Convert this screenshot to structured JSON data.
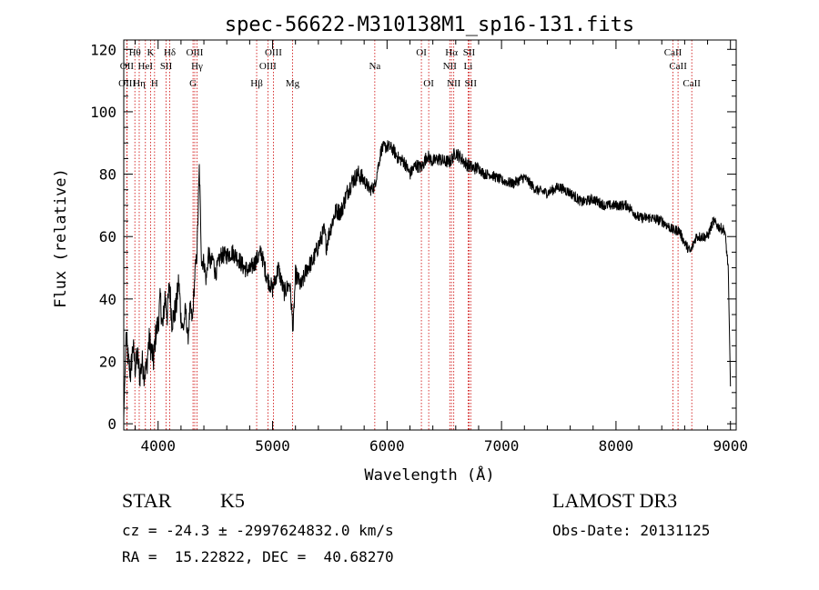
{
  "chart_data": {
    "type": "line",
    "title": "spec-56622-M310138M1_sp16-131.fits",
    "xlabel": "Wavelength (Å)",
    "ylabel": "Flux (relative)",
    "xlim": [
      3700,
      9050
    ],
    "ylim": [
      -2,
      123
    ],
    "xticks": [
      4000,
      5000,
      6000,
      7000,
      8000,
      9000
    ],
    "yticks": [
      0,
      20,
      40,
      60,
      80,
      100,
      120
    ],
    "grid": false,
    "line_color": "#000000",
    "marker_color": "#cc0000",
    "series": [
      {
        "x": [
          3700,
          3720,
          3740,
          3760,
          3780,
          3800,
          3820,
          3840,
          3860,
          3880,
          3900,
          3920,
          3940,
          3960,
          3980,
          4000,
          4020,
          4040,
          4060,
          4080,
          4100,
          4120,
          4140,
          4160,
          4180,
          4200,
          4220,
          4240,
          4260,
          4280,
          4300,
          4320,
          4340,
          4360,
          4380,
          4400,
          4420,
          4440,
          4460,
          4480,
          4500,
          4550,
          4600,
          4650,
          4700,
          4750,
          4800,
          4850,
          4900,
          4950,
          5000,
          5050,
          5100,
          5150,
          5180,
          5200,
          5250,
          5300,
          5350,
          5400,
          5450,
          5470,
          5500,
          5550,
          5600,
          5650,
          5700,
          5750,
          5800,
          5850,
          5890,
          5920,
          5950,
          6000,
          6050,
          6100,
          6150,
          6200,
          6250,
          6300,
          6350,
          6400,
          6450,
          6500,
          6550,
          6600,
          6650,
          6700,
          6750,
          6800,
          6850,
          6900,
          6950,
          7000,
          7100,
          7200,
          7300,
          7400,
          7500,
          7600,
          7700,
          7800,
          7900,
          8000,
          8100,
          8200,
          8300,
          8400,
          8500,
          8550,
          8600,
          8650,
          8700,
          8750,
          8800,
          8850,
          8900,
          8950,
          8980,
          9000
        ],
        "y": [
          2,
          28,
          20,
          16,
          25,
          18,
          22,
          15,
          20,
          16,
          18,
          27,
          24,
          20,
          29,
          32,
          40,
          30,
          41,
          35,
          45,
          33,
          35,
          38,
          46,
          34,
          30,
          37,
          27,
          37,
          33,
          47,
          55,
          82,
          52,
          52,
          46,
          55,
          51,
          53,
          48,
          54,
          54,
          55,
          53,
          50,
          49,
          52,
          55,
          47,
          43,
          50,
          42,
          45,
          30,
          48,
          44,
          50,
          52,
          57,
          62,
          57,
          62,
          68,
          68,
          74,
          78,
          80,
          78,
          75,
          76,
          82,
          88,
          89,
          88,
          85,
          84,
          80,
          83,
          82,
          86,
          84,
          85,
          84,
          84,
          87,
          85,
          83,
          82,
          82,
          80,
          80,
          79,
          78,
          77,
          79,
          75,
          74,
          76,
          74,
          71,
          72,
          70,
          70,
          70,
          66,
          66,
          65,
          62,
          62,
          58,
          55,
          60,
          60,
          60,
          65,
          63,
          62,
          50,
          12
        ]
      }
    ],
    "lines": [
      {
        "label": "Hθ",
        "x": 3797,
        "row": 0
      },
      {
        "label": "OII",
        "x": 3727,
        "row": 1
      },
      {
        "label": "OIII",
        "x": 3729,
        "row": 2
      },
      {
        "label": "Hη",
        "x": 3835,
        "row": 2
      },
      {
        "label": "HeI",
        "x": 3889,
        "row": 1
      },
      {
        "label": "K",
        "x": 3934,
        "row": 0
      },
      {
        "label": "H",
        "x": 3969,
        "row": 2
      },
      {
        "label": "SII",
        "x": 4070,
        "row": 1
      },
      {
        "label": "Hδ",
        "x": 4102,
        "row": 0
      },
      {
        "label": "G",
        "x": 4305,
        "row": 2
      },
      {
        "label": "OIII",
        "x": 4320,
        "row": 0
      },
      {
        "label": "Hγ",
        "x": 4340,
        "row": 1
      },
      {
        "label": "Hβ",
        "x": 4861,
        "row": 2
      },
      {
        "label": "OIII",
        "x": 4959,
        "row": 1
      },
      {
        "label": "OIII",
        "x": 5007,
        "row": 0
      },
      {
        "label": "Mg",
        "x": 5175,
        "row": 2
      },
      {
        "label": "Na",
        "x": 5893,
        "row": 1
      },
      {
        "label": "OI",
        "x": 6300,
        "row": 0
      },
      {
        "label": "OI",
        "x": 6364,
        "row": 2
      },
      {
        "label": "NII",
        "x": 6548,
        "row": 1
      },
      {
        "label": "Hα",
        "x": 6563,
        "row": 0
      },
      {
        "label": "NII",
        "x": 6583,
        "row": 2
      },
      {
        "label": "Li",
        "x": 6708,
        "row": 1
      },
      {
        "label": "SII",
        "x": 6717,
        "row": 0
      },
      {
        "label": "SII",
        "x": 6731,
        "row": 2
      },
      {
        "label": "CaII",
        "x": 8498,
        "row": 0
      },
      {
        "label": "CaII",
        "x": 8542,
        "row": 1
      },
      {
        "label": "CaII",
        "x": 8662,
        "row": 2
      }
    ]
  },
  "info": {
    "class": "STAR",
    "subclass": "K5",
    "survey": "LAMOST DR3",
    "cz": "cz = -24.3 ± -2997624832.0 km/s",
    "obs_date": "Obs-Date: 20131125",
    "coords": "RA =  15.22822, DEC =  40.68270"
  }
}
